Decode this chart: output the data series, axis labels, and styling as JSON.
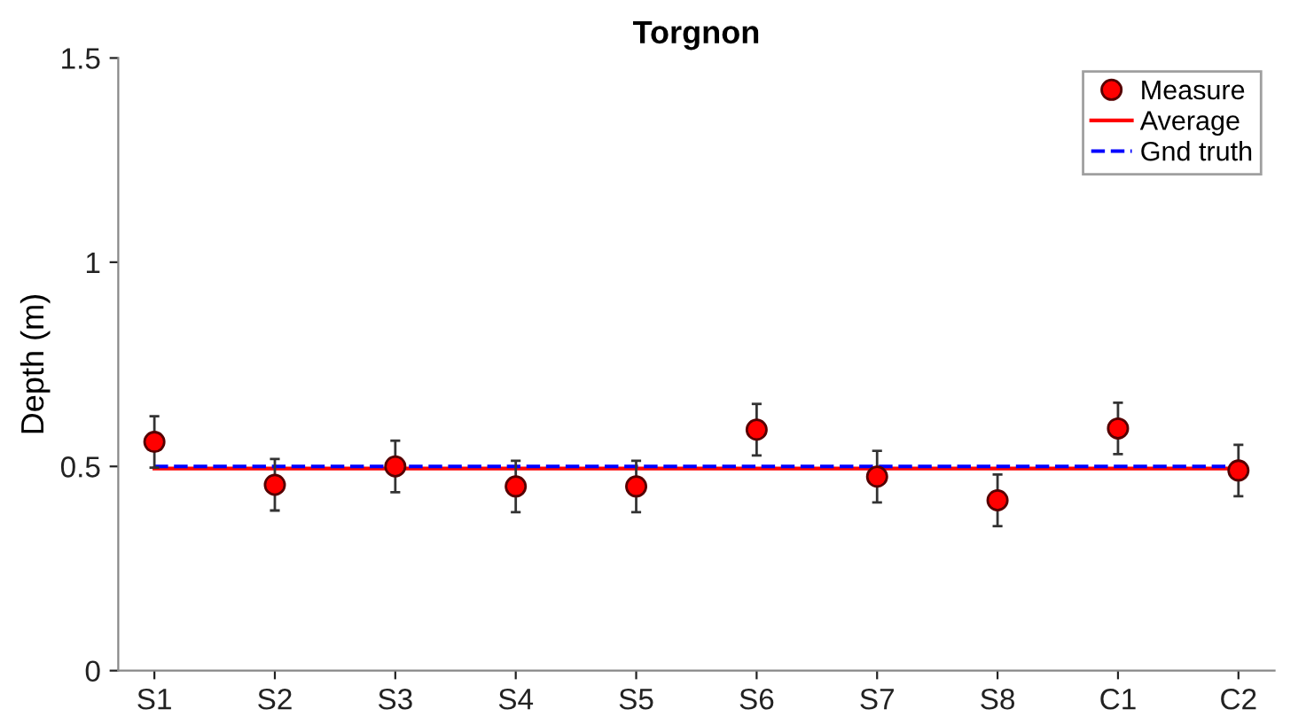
{
  "chart_data": {
    "type": "scatter",
    "title": "Torgnon",
    "ylabel": "Depth (m)",
    "categories": [
      "S1",
      "S2",
      "S3",
      "S4",
      "S5",
      "S6",
      "S7",
      "S8",
      "C1",
      "C2"
    ],
    "series": [
      {
        "name": "Measure",
        "color": "#ff0000",
        "marker": "circle",
        "values": [
          0.56,
          0.455,
          0.5,
          0.451,
          0.451,
          0.59,
          0.475,
          0.417,
          0.593,
          0.49
        ],
        "errors": [
          0.063,
          0.063,
          0.063,
          0.063,
          0.063,
          0.063,
          0.063,
          0.063,
          0.063,
          0.063
        ]
      },
      {
        "name": "Average",
        "type": "line",
        "color": "#ff0000",
        "line_style": "solid",
        "values": [
          0.495,
          0.495,
          0.495,
          0.495,
          0.495,
          0.495,
          0.495,
          0.495,
          0.495,
          0.495
        ]
      },
      {
        "name": "Gnd truth",
        "type": "line",
        "color": "#0000ff",
        "line_style": "dashed",
        "values": [
          0.5,
          0.5,
          0.5,
          0.5,
          0.5,
          0.5,
          0.5,
          0.5,
          0.5,
          0.5
        ]
      }
    ],
    "ylim": [
      0,
      1.5
    ],
    "yticks": [
      0,
      0.5,
      1,
      1.5
    ],
    "grid": false,
    "legend": "top right"
  }
}
